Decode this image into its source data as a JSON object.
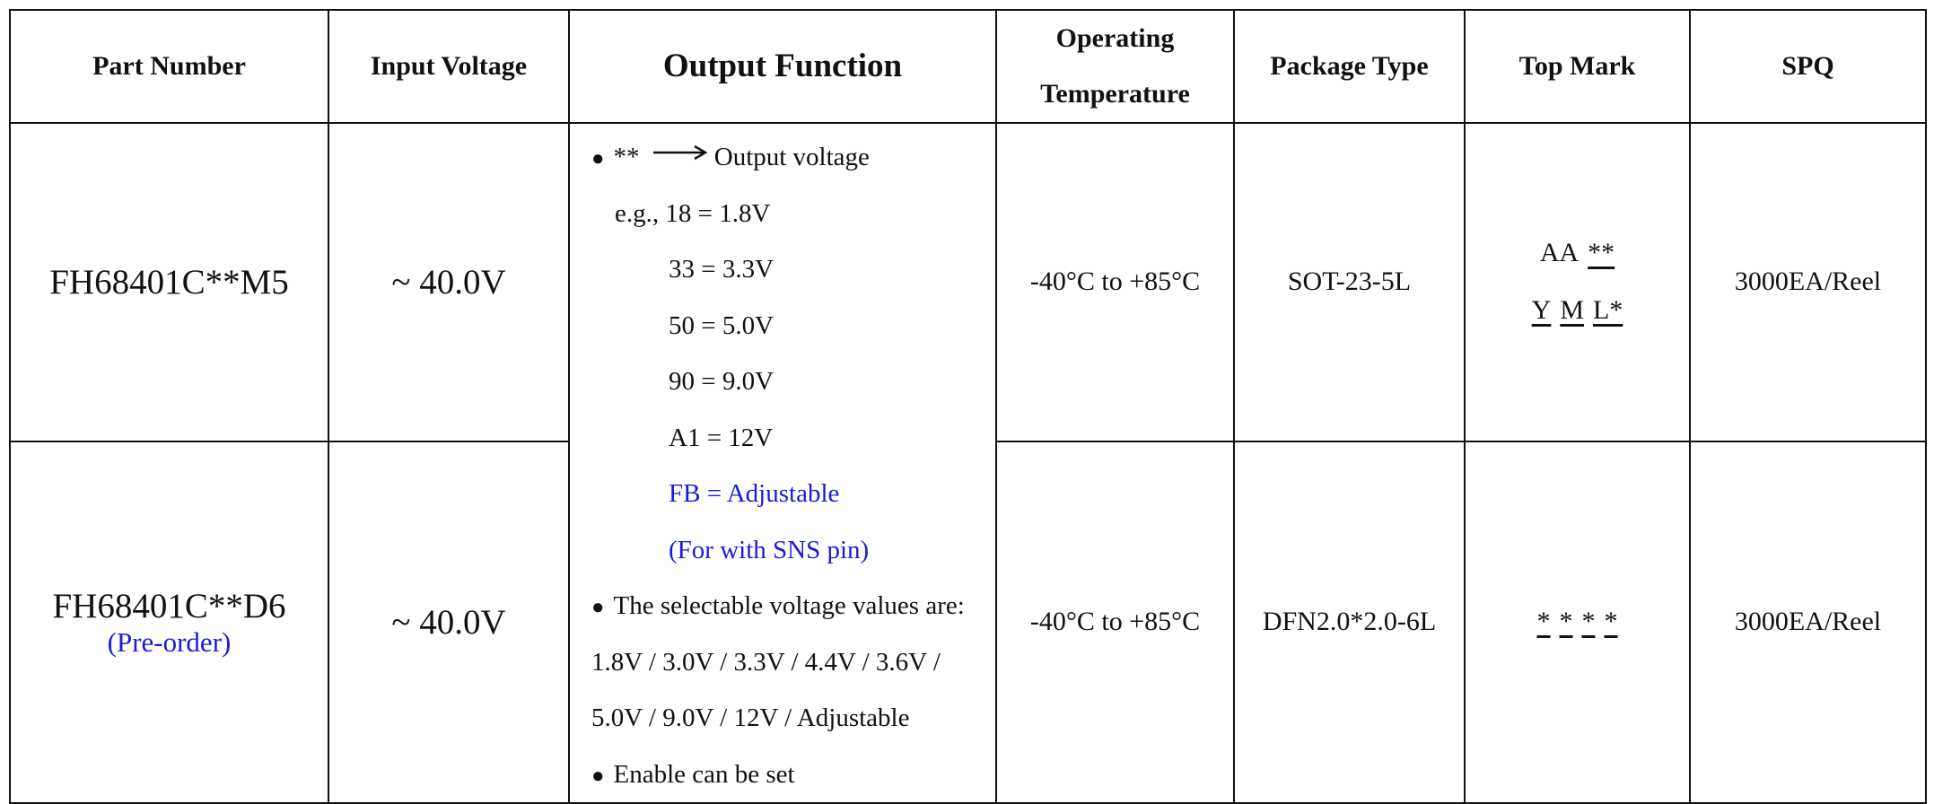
{
  "table": {
    "headers": [
      "Part Number",
      "Input Voltage",
      "Output Function",
      "Operating Temperature",
      "Package Type",
      "Top Mark",
      "SPQ"
    ],
    "rows": [
      {
        "part_number": "FH68401C**M5",
        "input_voltage": "~ 40.0V",
        "operating_temperature": "-40°C to +85°C",
        "package_type": "SOT-23-5L",
        "top_mark": [
          [
            {
              "text": "AA"
            },
            {
              "text": "**",
              "underline": true
            }
          ],
          [
            {
              "text": "Y",
              "underline": true
            },
            {
              "text": "M",
              "underline": true
            },
            {
              "text": "L*",
              "underline": true
            }
          ]
        ],
        "spq": "3000EA/Reel"
      },
      {
        "part_number": "FH68401C**D6",
        "note": "(Pre-order)",
        "input_voltage": "~ 40.0V",
        "operating_temperature": "-40°C to +85°C",
        "package_type": "DFN2.0*2.0-6L",
        "top_mark": [
          [
            {
              "text": "*",
              "underline": true
            },
            {
              "text": "*",
              "underline": true
            },
            {
              "text": "*",
              "underline": true
            },
            {
              "text": "*",
              "underline": true
            }
          ]
        ],
        "spq": "3000EA/Reel"
      }
    ],
    "output_function": {
      "code": {
        "key": "**",
        "desc": "Output voltage",
        "example_prefix": "e.g.,",
        "examples": [
          "18 = 1.8V",
          "33 = 3.3V",
          "50 = 5.0V",
          "90 = 9.0V",
          "A1 = 12V"
        ],
        "adjustable": [
          "FB = Adjustable",
          "(For with SNS pin)"
        ]
      },
      "selectable": {
        "title": "The selectable voltage values are:",
        "values": [
          "1.8V / 3.0V / 3.3V / 4.4V / 3.6V /",
          "5.0V / 9.0V / 12V / Adjustable"
        ]
      },
      "enable": "Enable can be set"
    }
  }
}
